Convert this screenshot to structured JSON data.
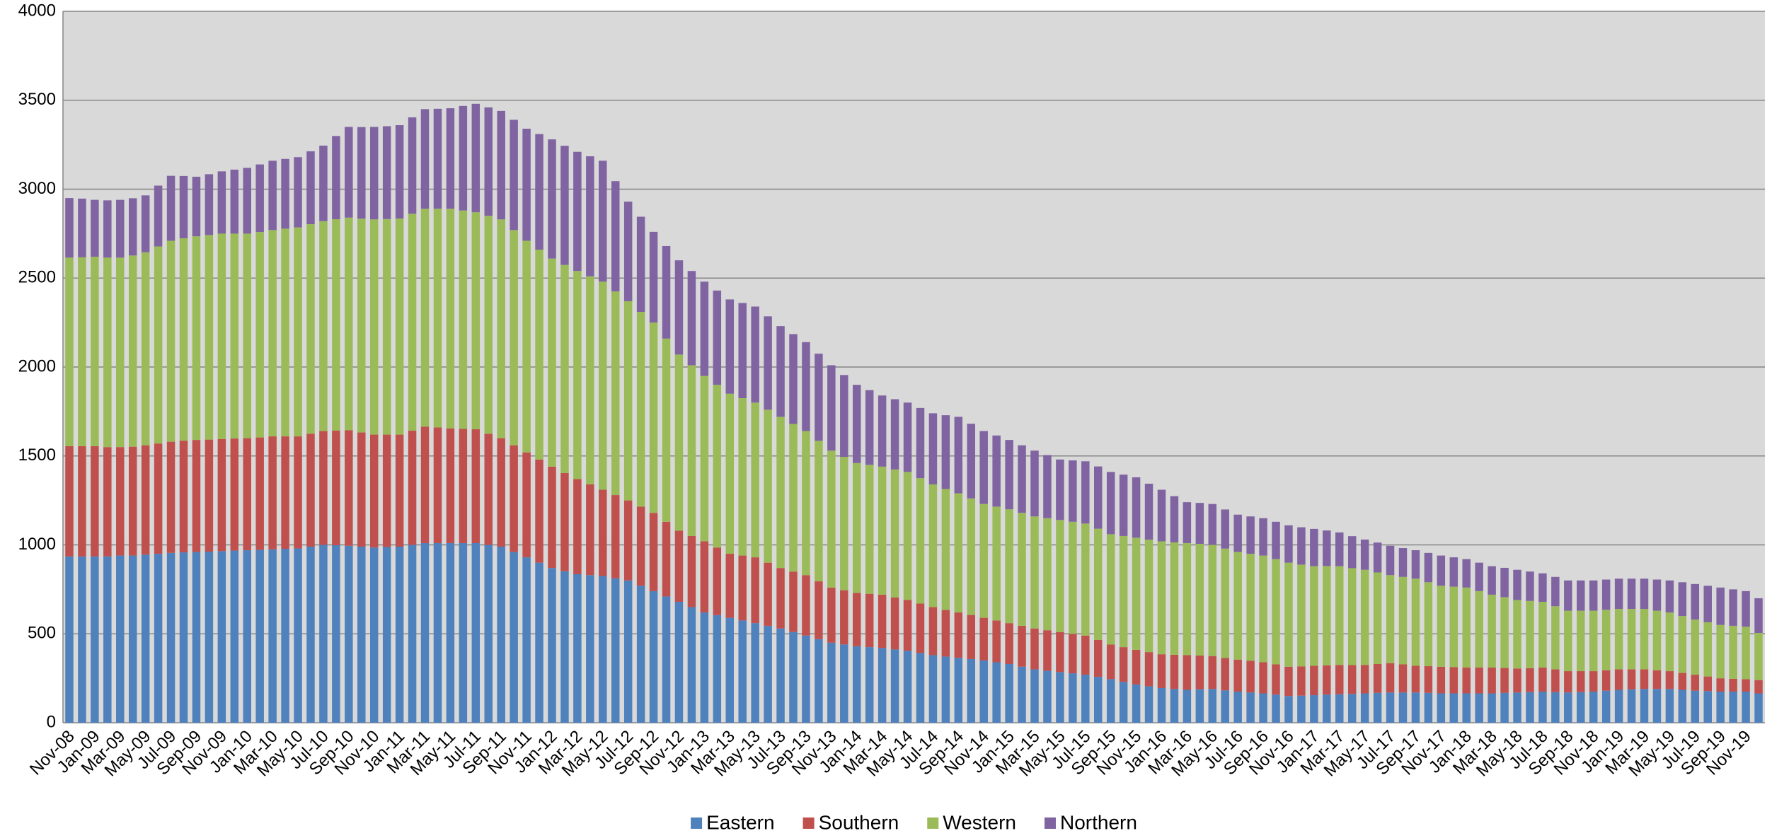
{
  "chart_data": {
    "type": "stacked_bar",
    "categories": [
      "Nov-08",
      null,
      "Jan-09",
      null,
      "Mar-09",
      null,
      "May-09",
      null,
      "Jul-09",
      null,
      "Sep-09",
      null,
      "Nov-09",
      null,
      "Jan-10",
      null,
      "Mar-10",
      null,
      "May-10",
      null,
      "Jul-10",
      null,
      "Sep-10",
      null,
      "Nov-10",
      null,
      "Jan-11",
      null,
      "Mar-11",
      null,
      "May-11",
      null,
      "Jul-11",
      null,
      "Sep-11",
      null,
      "Nov-11",
      null,
      "Jan-12",
      null,
      "Mar-12",
      null,
      "May-12",
      null,
      "Jul-12",
      null,
      "Sep-12",
      null,
      "Nov-12",
      null,
      "Jan-13",
      null,
      "Mar-13",
      null,
      "May-13",
      null,
      "Jul-13",
      null,
      "Sep-13",
      null,
      "Nov-13",
      null,
      "Jan-14",
      null,
      "Mar-14",
      null,
      "May-14",
      null,
      "Jul-14",
      null,
      "Sep-14",
      null,
      "Nov-14",
      null,
      "Jan-15",
      null,
      "Mar-15",
      null,
      "May-15",
      null,
      "Jul-15",
      null,
      "Sep-15",
      null,
      "Nov-15",
      null,
      "Jan-16",
      null,
      "Mar-16",
      null,
      "May-16",
      null,
      "Jul-16",
      null,
      "Sep-16",
      null,
      "Nov-16",
      null,
      "Jan-17",
      null,
      "Mar-17",
      null,
      "May-17",
      null,
      "Jul-17",
      null,
      "Sep-17",
      null,
      "Nov-17",
      null,
      "Jan-18",
      null,
      "Mar-18",
      null,
      "May-18",
      null,
      "Jul-18",
      null,
      "Sep-18",
      null,
      "Nov-18",
      null,
      "Jan-19",
      null,
      "Mar-19",
      null,
      "May-19",
      null,
      "Jul-19",
      null,
      "Sep-19",
      null,
      "Nov-19",
      null
    ],
    "series": [
      {
        "name": "Eastern",
        "color": "#4f81bd",
        "values": [
          935,
          935,
          935,
          935,
          940,
          940,
          945,
          950,
          955,
          958,
          960,
          962,
          965,
          968,
          970,
          972,
          975,
          978,
          980,
          990,
          1000,
          998,
          995,
          990,
          985,
          988,
          990,
          1000,
          1010,
          1010,
          1010,
          1010,
          1010,
          1000,
          990,
          960,
          930,
          900,
          870,
          852,
          835,
          830,
          825,
          812,
          800,
          770,
          740,
          710,
          680,
          650,
          620,
          605,
          590,
          575,
          560,
          545,
          530,
          510,
          490,
          470,
          450,
          440,
          430,
          425,
          420,
          412,
          405,
          392,
          380,
          372,
          365,
          358,
          350,
          340,
          330,
          315,
          300,
          292,
          285,
          278,
          270,
          258,
          245,
          230,
          215,
          205,
          195,
          190,
          185,
          188,
          190,
          182,
          175,
          170,
          165,
          158,
          150,
          152,
          155,
          158,
          160,
          162,
          165,
          168,
          170,
          170,
          170,
          168,
          165,
          165,
          165,
          165,
          165,
          168,
          170,
          172,
          175,
          172,
          170,
          172,
          175,
          180,
          185,
          188,
          190,
          190,
          190,
          185,
          180,
          178,
          175,
          175,
          175,
          165
        ]
      },
      {
        "name": "Southern",
        "color": "#c0504d",
        "values": [
          620,
          620,
          620,
          615,
          610,
          612,
          615,
          620,
          625,
          628,
          630,
          630,
          630,
          630,
          630,
          632,
          635,
          632,
          630,
          635,
          640,
          645,
          650,
          642,
          635,
          632,
          630,
          642,
          655,
          650,
          645,
          642,
          640,
          625,
          610,
          600,
          590,
          580,
          570,
          552,
          535,
          510,
          485,
          468,
          450,
          445,
          440,
          420,
          400,
          400,
          400,
          380,
          360,
          365,
          370,
          355,
          340,
          340,
          340,
          325,
          310,
          305,
          300,
          300,
          300,
          292,
          285,
          278,
          270,
          262,
          255,
          248,
          240,
          235,
          230,
          230,
          230,
          228,
          225,
          222,
          220,
          208,
          195,
          195,
          195,
          192,
          190,
          192,
          195,
          190,
          185,
          182,
          180,
          178,
          175,
          170,
          165,
          165,
          165,
          165,
          165,
          162,
          160,
          162,
          165,
          158,
          150,
          150,
          150,
          148,
          145,
          145,
          145,
          140,
          135,
          135,
          135,
          128,
          120,
          118,
          115,
          115,
          115,
          112,
          110,
          105,
          100,
          95,
          90,
          82,
          75,
          72,
          70,
          75
        ]
      },
      {
        "name": "Western",
        "color": "#9bbb59",
        "values": [
          1060,
          1062,
          1065,
          1065,
          1065,
          1075,
          1085,
          1108,
          1130,
          1138,
          1145,
          1150,
          1155,
          1152,
          1150,
          1155,
          1160,
          1168,
          1175,
          1178,
          1180,
          1188,
          1195,
          1202,
          1210,
          1212,
          1215,
          1220,
          1225,
          1230,
          1235,
          1228,
          1220,
          1225,
          1230,
          1210,
          1190,
          1180,
          1170,
          1170,
          1170,
          1170,
          1170,
          1145,
          1120,
          1095,
          1070,
          1030,
          990,
          960,
          930,
          915,
          900,
          885,
          870,
          860,
          850,
          830,
          810,
          790,
          770,
          750,
          730,
          725,
          720,
          720,
          720,
          705,
          690,
          680,
          670,
          655,
          640,
          640,
          640,
          635,
          630,
          630,
          630,
          630,
          630,
          625,
          620,
          625,
          630,
          632,
          635,
          632,
          630,
          628,
          625,
          615,
          605,
          602,
          600,
          592,
          585,
          572,
          560,
          558,
          555,
          545,
          535,
          515,
          495,
          492,
          490,
          472,
          455,
          452,
          450,
          430,
          410,
          398,
          385,
          378,
          370,
          355,
          340,
          340,
          340,
          340,
          340,
          340,
          340,
          335,
          330,
          320,
          310,
          305,
          300,
          298,
          295,
          265
        ]
      },
      {
        "name": "Northern",
        "color": "#8064a2",
        "values": [
          335,
          330,
          320,
          322,
          325,
          322,
          320,
          342,
          365,
          350,
          335,
          342,
          350,
          360,
          370,
          380,
          390,
          392,
          395,
          410,
          425,
          468,
          510,
          515,
          520,
          522,
          525,
          542,
          560,
          562,
          565,
          588,
          610,
          610,
          610,
          620,
          630,
          650,
          670,
          670,
          670,
          675,
          680,
          620,
          560,
          535,
          510,
          520,
          530,
          530,
          530,
          530,
          530,
          535,
          540,
          525,
          510,
          505,
          500,
          490,
          480,
          460,
          440,
          420,
          400,
          395,
          390,
          395,
          400,
          415,
          430,
          420,
          410,
          400,
          390,
          380,
          370,
          355,
          340,
          345,
          350,
          350,
          350,
          345,
          340,
          315,
          290,
          260,
          230,
          230,
          230,
          220,
          210,
          210,
          210,
          210,
          210,
          210,
          210,
          200,
          190,
          180,
          170,
          168,
          165,
          162,
          160,
          165,
          170,
          165,
          160,
          160,
          160,
          165,
          170,
          165,
          160,
          165,
          170,
          170,
          170,
          170,
          170,
          170,
          170,
          175,
          180,
          190,
          200,
          205,
          210,
          205,
          200,
          195
        ]
      }
    ],
    "ylim": [
      0,
      4000
    ],
    "yticks": [
      0,
      500,
      1000,
      1500,
      2000,
      2500,
      3000,
      3500,
      4000
    ],
    "grid": true,
    "legend": "bottom"
  }
}
